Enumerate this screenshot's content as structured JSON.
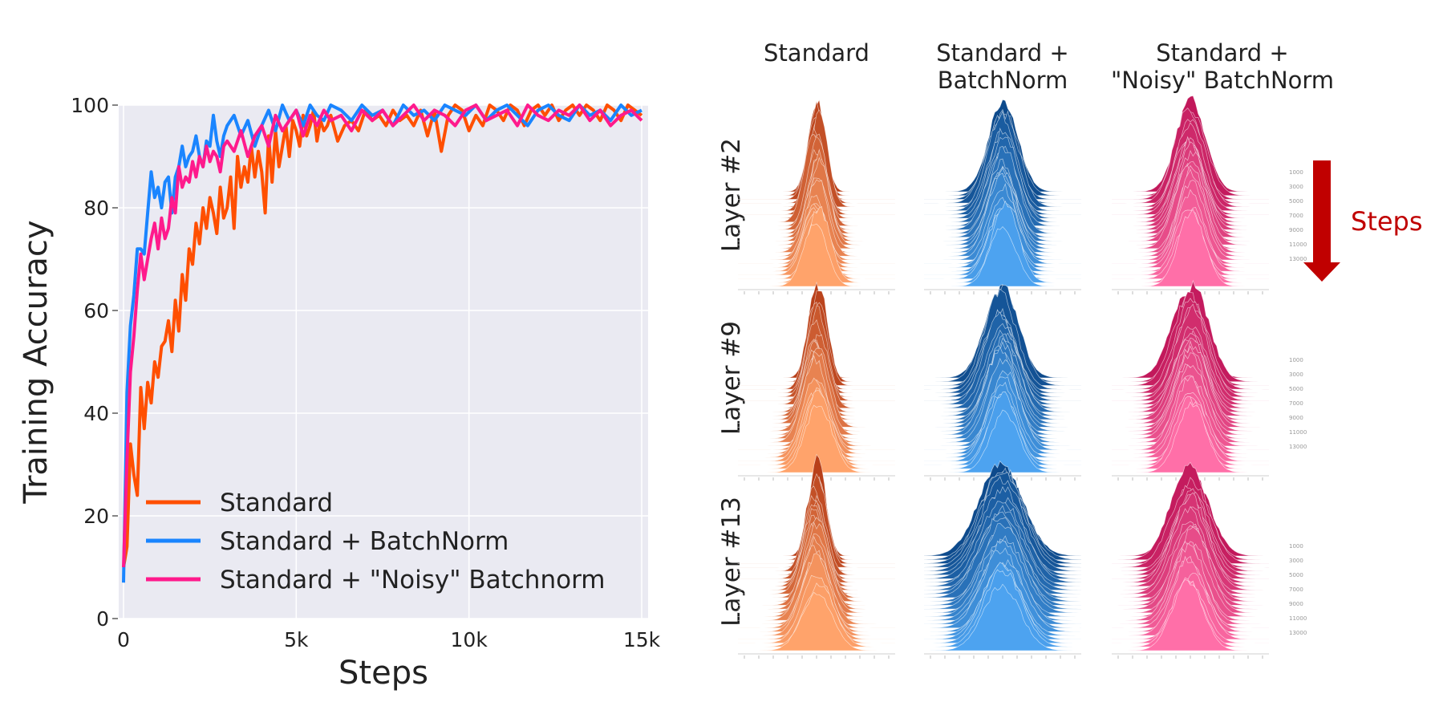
{
  "chart_data": [
    {
      "type": "line",
      "xlabel": "Steps",
      "ylabel": "Training Accuracy",
      "xlim": [
        0,
        15000
      ],
      "ylim": [
        0,
        100
      ],
      "xticks": [
        0,
        5000,
        10000,
        15000
      ],
      "xtick_labels": [
        "0",
        "5k",
        "10k",
        "15k"
      ],
      "yticks": [
        0,
        20,
        40,
        60,
        80,
        100
      ],
      "ytick_labels": [
        "0",
        "20",
        "40",
        "60",
        "80",
        "100"
      ],
      "grid": true,
      "legend_position": "bottom-left",
      "series": [
        {
          "name": "Standard",
          "color": "#ff4f00",
          "x": [
            0,
            100,
            200,
            300,
            400,
            500,
            600,
            700,
            800,
            900,
            1000,
            1100,
            1200,
            1300,
            1400,
            1500,
            1600,
            1700,
            1800,
            1900,
            2000,
            2100,
            2200,
            2300,
            2400,
            2500,
            2600,
            2700,
            2800,
            2900,
            3000,
            3100,
            3200,
            3300,
            3400,
            3500,
            3600,
            3700,
            3800,
            3900,
            4000,
            4100,
            4200,
            4300,
            4400,
            4500,
            4600,
            4700,
            4800,
            4900,
            5000,
            5100,
            5200,
            5300,
            5400,
            5500,
            5600,
            5700,
            5800,
            5900,
            6000,
            6200,
            6400,
            6600,
            6800,
            7000,
            7200,
            7400,
            7600,
            7800,
            8000,
            8200,
            8400,
            8600,
            8800,
            9000,
            9200,
            9400,
            9600,
            9800,
            10000,
            10200,
            10400,
            10600,
            10800,
            11000,
            11200,
            11400,
            11600,
            11800,
            12000,
            12200,
            12400,
            12600,
            12800,
            13000,
            13200,
            13400,
            13600,
            13800,
            14000,
            14200,
            14400,
            14600,
            14800,
            15000
          ],
          "values": [
            10,
            14,
            34,
            28,
            24,
            45,
            37,
            46,
            42,
            50,
            47,
            53,
            54,
            58,
            52,
            62,
            56,
            67,
            62,
            72,
            69,
            77,
            73,
            80,
            76,
            82,
            79,
            75,
            84,
            78,
            80,
            86,
            76,
            90,
            84,
            88,
            85,
            92,
            86,
            91,
            87,
            79,
            94,
            85,
            95,
            88,
            92,
            96,
            90,
            97,
            95,
            92,
            98,
            94,
            96,
            99,
            93,
            97,
            95,
            96,
            98,
            93,
            96,
            97,
            95,
            99,
            97,
            98,
            96,
            99,
            97,
            98,
            96,
            99,
            94,
            99,
            91,
            98,
            100,
            99,
            95,
            98,
            96,
            100,
            99,
            97,
            100,
            99,
            96,
            99,
            100,
            98,
            100,
            97,
            99,
            100,
            98,
            100,
            99,
            97,
            100,
            99,
            97,
            100,
            99,
            98
          ]
        },
        {
          "name": "Standard + BatchNorm",
          "color": "#1a85ff",
          "x": [
            0,
            100,
            200,
            300,
            400,
            500,
            600,
            700,
            800,
            900,
            1000,
            1100,
            1200,
            1300,
            1400,
            1500,
            1600,
            1700,
            1800,
            1900,
            2000,
            2100,
            2200,
            2300,
            2400,
            2500,
            2600,
            2700,
            2800,
            2900,
            3000,
            3200,
            3400,
            3600,
            3800,
            4000,
            4200,
            4400,
            4600,
            4800,
            5000,
            5200,
            5400,
            5600,
            5800,
            6000,
            6300,
            6600,
            6900,
            7200,
            7500,
            7800,
            8100,
            8400,
            8700,
            9000,
            9300,
            9600,
            9900,
            10200,
            10500,
            10800,
            11100,
            11400,
            11700,
            12000,
            12300,
            12600,
            12900,
            13200,
            13500,
            13800,
            14100,
            14400,
            14700,
            15000
          ],
          "values": [
            7,
            44,
            57,
            63,
            72,
            72,
            71,
            79,
            87,
            82,
            84,
            80,
            85,
            86,
            79,
            86,
            88,
            92,
            88,
            90,
            91,
            94,
            90,
            88,
            93,
            92,
            98,
            93,
            90,
            94,
            96,
            98,
            94,
            97,
            92,
            96,
            99,
            95,
            100,
            97,
            99,
            96,
            100,
            98,
            97,
            100,
            99,
            97,
            100,
            98,
            99,
            96,
            100,
            98,
            99,
            97,
            100,
            99,
            98,
            100,
            97,
            99,
            100,
            98,
            96,
            99,
            100,
            98,
            97,
            100,
            98,
            99,
            97,
            100,
            98,
            99
          ]
        },
        {
          "name": "Standard + \"Noisy\" Batchnorm",
          "color": "#ff1a8c",
          "x": [
            0,
            100,
            200,
            300,
            400,
            500,
            600,
            700,
            800,
            900,
            1000,
            1100,
            1200,
            1300,
            1400,
            1500,
            1600,
            1700,
            1800,
            1900,
            2000,
            2100,
            2200,
            2300,
            2400,
            2500,
            2600,
            2700,
            2800,
            2900,
            3000,
            3200,
            3400,
            3600,
            3800,
            4000,
            4200,
            4400,
            4600,
            4800,
            5000,
            5200,
            5400,
            5600,
            5800,
            6000,
            6300,
            6600,
            6900,
            7200,
            7500,
            7800,
            8100,
            8400,
            8700,
            9000,
            9300,
            9600,
            9900,
            10200,
            10500,
            10800,
            11100,
            11400,
            11700,
            12000,
            12300,
            12600,
            12900,
            13200,
            13500,
            13800,
            14100,
            14400,
            14700,
            15000
          ],
          "values": [
            10,
            31,
            48,
            55,
            64,
            71,
            66,
            70,
            74,
            77,
            72,
            78,
            74,
            76,
            82,
            79,
            88,
            84,
            86,
            85,
            89,
            86,
            90,
            88,
            92,
            89,
            91,
            90,
            87,
            92,
            93,
            91,
            95,
            90,
            94,
            96,
            92,
            98,
            95,
            97,
            99,
            94,
            98,
            96,
            99,
            97,
            98,
            95,
            99,
            97,
            99,
            96,
            98,
            100,
            97,
            99,
            98,
            96,
            99,
            100,
            97,
            98,
            99,
            96,
            100,
            98,
            97,
            99,
            98,
            100,
            97,
            99,
            96,
            98,
            99,
            97
          ]
        }
      ]
    },
    {
      "type": "ridgeline",
      "columns": [
        "Standard",
        "Standard +\nBatchNorm",
        "Standard +\n\"Noisy\" BatchNorm"
      ],
      "rows": [
        "Layer #2",
        "Layer #9",
        "Layer #13"
      ],
      "palettes": [
        {
          "dark": "#b8401a",
          "light": "#ffa36b"
        },
        {
          "dark": "#0d4a8c",
          "light": "#4da3f0"
        },
        {
          "dark": "#c2185b",
          "light": "#ff6fa8"
        }
      ],
      "step_labels": [
        "1000",
        "3000",
        "5000",
        "7000",
        "9000",
        "11000",
        "13000"
      ],
      "arrow_label": "Steps",
      "arrow_color": "#c00000"
    }
  ]
}
